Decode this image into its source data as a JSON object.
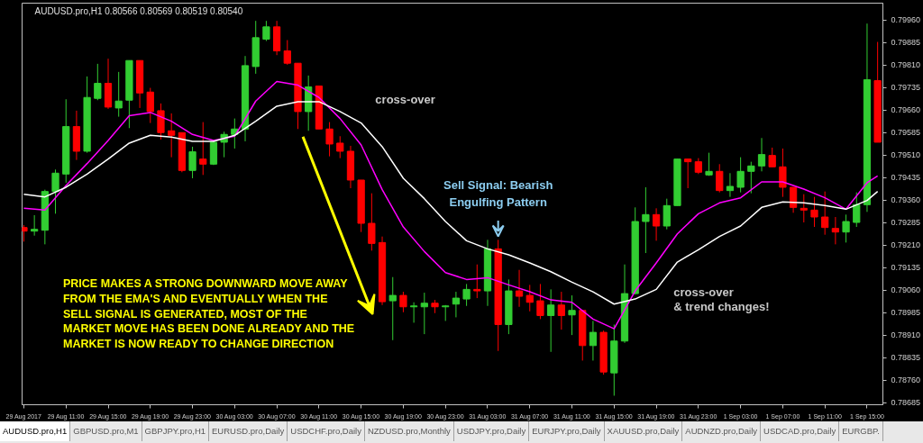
{
  "chart_data": {
    "type": "candlestick",
    "title": "AUDUSD.pro,H1  0.80566 0.80569 0.80519 0.80540",
    "x": [
      "2017-08-29T07:00",
      "2017-08-29T08:00",
      "2017-08-29T09:00",
      "2017-08-29T10:00",
      "2017-08-29T11:00",
      "2017-08-29T12:00",
      "2017-08-29T13:00",
      "2017-08-29T14:00",
      "2017-08-29T15:00",
      "2017-08-29T16:00",
      "2017-08-29T17:00",
      "2017-08-29T18:00",
      "2017-08-29T19:00",
      "2017-08-29T20:00",
      "2017-08-29T21:00",
      "2017-08-29T22:00",
      "2017-08-29T23:00",
      "2017-08-30T00:00",
      "2017-08-30T01:00",
      "2017-08-30T02:00",
      "2017-08-30T03:00",
      "2017-08-30T04:00",
      "2017-08-30T05:00",
      "2017-08-30T06:00",
      "2017-08-30T07:00",
      "2017-08-30T08:00",
      "2017-08-30T09:00",
      "2017-08-30T10:00",
      "2017-08-30T11:00",
      "2017-08-30T12:00",
      "2017-08-30T13:00",
      "2017-08-30T14:00",
      "2017-08-30T15:00",
      "2017-08-30T16:00",
      "2017-08-30T17:00",
      "2017-08-30T18:00",
      "2017-08-30T19:00",
      "2017-08-30T20:00",
      "2017-08-30T21:00",
      "2017-08-30T22:00",
      "2017-08-30T23:00",
      "2017-08-31T00:00",
      "2017-08-31T01:00",
      "2017-08-31T02:00",
      "2017-08-31T03:00",
      "2017-08-31T04:00",
      "2017-08-31T05:00",
      "2017-08-31T06:00",
      "2017-08-31T07:00",
      "2017-08-31T08:00",
      "2017-08-31T09:00",
      "2017-08-31T10:00",
      "2017-08-31T11:00",
      "2017-08-31T12:00",
      "2017-08-31T13:00",
      "2017-08-31T14:00",
      "2017-08-31T15:00",
      "2017-08-31T16:00",
      "2017-08-31T17:00",
      "2017-08-31T18:00",
      "2017-08-31T19:00",
      "2017-08-31T20:00",
      "2017-08-31T21:00",
      "2017-08-31T22:00",
      "2017-08-31T23:00",
      "2017-09-01T00:00",
      "2017-09-01T01:00",
      "2017-09-01T02:00",
      "2017-09-01T03:00",
      "2017-09-01T04:00",
      "2017-09-01T05:00",
      "2017-09-01T06:00",
      "2017-09-01T07:00",
      "2017-09-01T08:00",
      "2017-09-01T09:00",
      "2017-09-01T10:00",
      "2017-09-01T11:00",
      "2017-09-01T12:00",
      "2017-09-01T13:00",
      "2017-09-01T14:00",
      "2017-09-01T15:00",
      "2017-09-01T16:00"
    ],
    "ohlc": [
      [
        0.79269,
        0.79277,
        0.79222,
        0.79257
      ],
      [
        0.79257,
        0.7931,
        0.79242,
        0.79263
      ],
      [
        0.7926,
        0.79395,
        0.79213,
        0.79389
      ],
      [
        0.79389,
        0.79462,
        0.79315,
        0.7945
      ],
      [
        0.79447,
        0.79696,
        0.79418,
        0.79605
      ],
      [
        0.79605,
        0.79658,
        0.79494,
        0.79523
      ],
      [
        0.79523,
        0.79772,
        0.79518,
        0.79702
      ],
      [
        0.79699,
        0.79814,
        0.79693,
        0.79749
      ],
      [
        0.79749,
        0.79831,
        0.79664,
        0.7967
      ],
      [
        0.79667,
        0.79787,
        0.79638,
        0.7969
      ],
      [
        0.79693,
        0.79825,
        0.796,
        0.79825
      ],
      [
        0.79825,
        0.79825,
        0.79667,
        0.79717
      ],
      [
        0.7972,
        0.79734,
        0.79617,
        0.79655
      ],
      [
        0.79658,
        0.79682,
        0.79562,
        0.79585
      ],
      [
        0.79591,
        0.79649,
        0.79503,
        0.79576
      ],
      [
        0.79585,
        0.79585,
        0.79453,
        0.79459
      ],
      [
        0.79459,
        0.79538,
        0.79433,
        0.79521
      ],
      [
        0.79497,
        0.7962,
        0.79444,
        0.7948
      ],
      [
        0.7948,
        0.79559,
        0.79477,
        0.79553
      ],
      [
        0.79553,
        0.79588,
        0.79503,
        0.79579
      ],
      [
        0.79579,
        0.79632,
        0.79532,
        0.79597
      ],
      [
        0.79597,
        0.7984,
        0.79556,
        0.79808
      ],
      [
        0.79805,
        0.79957,
        0.79781,
        0.79901
      ],
      [
        0.79896,
        0.79957,
        0.7989,
        0.79937
      ],
      [
        0.79937,
        0.79957,
        0.79843,
        0.79857
      ],
      [
        0.79857,
        0.79893,
        0.79811,
        0.79816
      ],
      [
        0.79816,
        0.79816,
        0.79597,
        0.79655
      ],
      [
        0.79655,
        0.79775,
        0.79591,
        0.79737
      ],
      [
        0.7974,
        0.7974,
        0.79597,
        0.79597
      ],
      [
        0.79597,
        0.7962,
        0.79506,
        0.79547
      ],
      [
        0.7955,
        0.79573,
        0.795,
        0.79523
      ],
      [
        0.79523,
        0.79541,
        0.794,
        0.79427
      ],
      [
        0.79427,
        0.79427,
        0.79254,
        0.79283
      ],
      [
        0.79283,
        0.79383,
        0.79192,
        0.79216
      ],
      [
        0.79219,
        0.79239,
        0.79011,
        0.79022
      ],
      [
        0.79025,
        0.79104,
        0.78894,
        0.79043
      ],
      [
        0.79043,
        0.79055,
        0.78987,
        0.79005
      ],
      [
        0.79005,
        0.7902,
        0.78952,
        0.79008
      ],
      [
        0.79005,
        0.79052,
        0.78914,
        0.79017
      ],
      [
        0.79017,
        0.79028,
        0.78984,
        0.79005
      ],
      [
        0.79005,
        0.79011,
        0.78958,
        0.79008
      ],
      [
        0.79014,
        0.79055,
        0.7897,
        0.79034
      ],
      [
        0.79031,
        0.79081,
        0.79008,
        0.79063
      ],
      [
        0.79063,
        0.79146,
        0.79034,
        0.79058
      ],
      [
        0.79058,
        0.79228,
        0.79008,
        0.79198
      ],
      [
        0.79198,
        0.79228,
        0.78858,
        0.78946
      ],
      [
        0.78946,
        0.79096,
        0.78914,
        0.79058
      ],
      [
        0.79058,
        0.79128,
        0.79005,
        0.7904
      ],
      [
        0.79043,
        0.79078,
        0.7899,
        0.7902
      ],
      [
        0.79025,
        0.79081,
        0.78964,
        0.78976
      ],
      [
        0.78976,
        0.79063,
        0.78855,
        0.79011
      ],
      [
        0.79011,
        0.79055,
        0.78929,
        0.78976
      ],
      [
        0.78978,
        0.79043,
        0.78911,
        0.78993
      ],
      [
        0.78993,
        0.78993,
        0.78826,
        0.78876
      ],
      [
        0.78876,
        0.78958,
        0.78826,
        0.7892
      ],
      [
        0.7892,
        0.78926,
        0.78779,
        0.78788
      ],
      [
        0.78785,
        0.78946,
        0.78709,
        0.78891
      ],
      [
        0.78891,
        0.79146,
        0.78885,
        0.79049
      ],
      [
        0.79049,
        0.79336,
        0.79046,
        0.79289
      ],
      [
        0.79289,
        0.79403,
        0.79184,
        0.79312
      ],
      [
        0.79312,
        0.79333,
        0.79225,
        0.79274
      ],
      [
        0.79274,
        0.79365,
        0.79263,
        0.79342
      ],
      [
        0.79342,
        0.79497,
        0.79342,
        0.79497
      ],
      [
        0.79497,
        0.79497,
        0.794,
        0.79488
      ],
      [
        0.79488,
        0.795,
        0.79447,
        0.79453
      ],
      [
        0.79444,
        0.79518,
        0.79441,
        0.79456
      ],
      [
        0.79456,
        0.7948,
        0.79386,
        0.79392
      ],
      [
        0.79392,
        0.7945,
        0.79371,
        0.79406
      ],
      [
        0.79403,
        0.79503,
        0.79386,
        0.79456
      ],
      [
        0.79456,
        0.79488,
        0.79383,
        0.79474
      ],
      [
        0.79474,
        0.79567,
        0.79456,
        0.79512
      ],
      [
        0.79509,
        0.79535,
        0.79471,
        0.79471
      ],
      [
        0.79471,
        0.79532,
        0.79371,
        0.79403
      ],
      [
        0.79403,
        0.79403,
        0.79318,
        0.79336
      ],
      [
        0.79333,
        0.7938,
        0.79286,
        0.79327
      ],
      [
        0.79327,
        0.79371,
        0.79271,
        0.79304
      ],
      [
        0.79304,
        0.79389,
        0.79245,
        0.79269
      ],
      [
        0.79266,
        0.79304,
        0.79213,
        0.79254
      ],
      [
        0.79254,
        0.79312,
        0.79219,
        0.79289
      ],
      [
        0.79286,
        0.79386,
        0.79271,
        0.79345
      ],
      [
        0.79345,
        0.79948,
        0.79321,
        0.79761
      ],
      [
        0.79758,
        0.79887,
        0.79553,
        0.79553
      ]
    ],
    "colors": [
      "#ff0000",
      "#32cd32",
      "#32cd32",
      "#32cd32",
      "#32cd32",
      "#ff0000",
      "#32cd32",
      "#32cd32",
      "#ff0000",
      "#32cd32",
      "#32cd32",
      "#ff0000",
      "#ff0000",
      "#ff0000",
      "#ff0000",
      "#ff0000",
      "#32cd32",
      "#ff0000",
      "#32cd32",
      "#32cd32",
      "#32cd32",
      "#32cd32",
      "#32cd32",
      "#32cd32",
      "#ff0000",
      "#ff0000",
      "#ff0000",
      "#32cd32",
      "#ff0000",
      "#ff0000",
      "#ff0000",
      "#ff0000",
      "#ff0000",
      "#ff0000",
      "#ff0000",
      "#32cd32",
      "#ff0000",
      "#32cd32",
      "#32cd32",
      "#ff0000",
      "#32cd32",
      "#32cd32",
      "#32cd32",
      "#ff0000",
      "#32cd32",
      "#ff0000",
      "#32cd32",
      "#ff0000",
      "#ff0000",
      "#ff0000",
      "#32cd32",
      "#ff0000",
      "#32cd32",
      "#ff0000",
      "#32cd32",
      "#ff0000",
      "#32cd32",
      "#32cd32",
      "#32cd32",
      "#32cd32",
      "#ff0000",
      "#32cd32",
      "#32cd32",
      "#ff0000",
      "#ff0000",
      "#32cd32",
      "#ff0000",
      "#32cd32",
      "#32cd32",
      "#32cd32",
      "#32cd32",
      "#ff0000",
      "#ff0000",
      "#ff0000",
      "#ff0000",
      "#ff0000",
      "#ff0000",
      "#ff0000",
      "#32cd32",
      "#32cd32",
      "#32cd32",
      "#ff0000"
    ],
    "series": [
      {
        "type": "line",
        "color": "#ff00ff",
        "x": [
          "2017-08-29T07:00",
          "2017-08-29T09:00",
          "2017-08-29T11:00",
          "2017-08-29T13:00",
          "2017-08-29T15:00",
          "2017-08-29T17:00",
          "2017-08-29T19:00",
          "2017-08-29T21:00",
          "2017-08-29T23:00",
          "2017-08-30T01:00",
          "2017-08-30T03:00",
          "2017-08-30T05:00",
          "2017-08-30T07:00",
          "2017-08-30T09:00",
          "2017-08-30T11:00",
          "2017-08-30T13:00",
          "2017-08-30T15:00",
          "2017-08-30T17:00",
          "2017-08-30T19:00",
          "2017-08-30T21:00",
          "2017-08-30T23:00",
          "2017-08-31T01:00",
          "2017-08-31T03:00",
          "2017-08-31T05:00",
          "2017-08-31T07:00",
          "2017-08-31T09:00",
          "2017-08-31T11:00",
          "2017-08-31T13:00",
          "2017-08-31T15:00",
          "2017-08-31T17:00",
          "2017-08-31T19:00",
          "2017-08-31T21:00",
          "2017-08-31T23:00",
          "2017-09-01T01:00",
          "2017-09-01T03:00",
          "2017-09-01T05:00",
          "2017-09-01T07:00",
          "2017-09-01T09:00",
          "2017-09-01T11:00",
          "2017-09-01T13:00",
          "2017-09-01T15:00",
          "2017-09-01T16:00"
        ],
        "values": [
          0.79333,
          0.79327,
          0.79409,
          0.79482,
          0.79559,
          0.79641,
          0.79652,
          0.79623,
          0.79579,
          0.79559,
          0.79573,
          0.7969,
          0.79755,
          0.79743,
          0.79702,
          0.79632,
          0.79544,
          0.79395,
          0.79271,
          0.79189,
          0.79119,
          0.79096,
          0.79102,
          0.79078,
          0.79055,
          0.79028,
          0.7902,
          0.78964,
          0.78932,
          0.79058,
          0.79151,
          0.79248,
          0.79315,
          0.79351,
          0.79368,
          0.79421,
          0.79421,
          0.79397,
          0.79368,
          0.7933,
          0.79418,
          0.79441
        ]
      },
      {
        "type": "line",
        "color": "#ffffff",
        "x": [
          "2017-08-29T07:00",
          "2017-08-29T09:00",
          "2017-08-29T11:00",
          "2017-08-29T13:00",
          "2017-08-29T15:00",
          "2017-08-29T17:00",
          "2017-08-29T19:00",
          "2017-08-29T21:00",
          "2017-08-29T23:00",
          "2017-08-30T01:00",
          "2017-08-30T03:00",
          "2017-08-30T05:00",
          "2017-08-30T07:00",
          "2017-08-30T09:00",
          "2017-08-30T11:00",
          "2017-08-30T13:00",
          "2017-08-30T15:00",
          "2017-08-30T17:00",
          "2017-08-30T19:00",
          "2017-08-30T21:00",
          "2017-08-30T23:00",
          "2017-08-31T01:00",
          "2017-08-31T03:00",
          "2017-08-31T05:00",
          "2017-08-31T07:00",
          "2017-08-31T09:00",
          "2017-08-31T11:00",
          "2017-08-31T13:00",
          "2017-08-31T15:00",
          "2017-08-31T17:00",
          "2017-08-31T19:00",
          "2017-08-31T21:00",
          "2017-08-31T23:00",
          "2017-09-01T01:00",
          "2017-09-01T03:00",
          "2017-09-01T05:00",
          "2017-09-01T07:00",
          "2017-09-01T09:00",
          "2017-09-01T11:00",
          "2017-09-01T13:00",
          "2017-09-01T15:00",
          "2017-09-01T16:00"
        ],
        "values": [
          0.7938,
          0.79371,
          0.79403,
          0.79447,
          0.79497,
          0.7955,
          0.79576,
          0.7957,
          0.79556,
          0.79556,
          0.79576,
          0.79623,
          0.79673,
          0.79688,
          0.79688,
          0.79655,
          0.79617,
          0.79538,
          0.79433,
          0.79365,
          0.79289,
          0.79225,
          0.79198,
          0.79178,
          0.79151,
          0.79122,
          0.79087,
          0.79055,
          0.79014,
          0.79031,
          0.79063,
          0.79154,
          0.79195,
          0.79239,
          0.79274,
          0.79336,
          0.79354,
          0.79351,
          0.79342,
          0.7933,
          0.79359,
          0.79389
        ]
      }
    ],
    "xlim": [
      "2017-08-29T06:50",
      "2017-09-01T16:30"
    ],
    "xticks": [
      {
        "value": "2017-08-29T07:00",
        "label": "29 Aug 2017"
      },
      {
        "value": "2017-08-29T11:00",
        "label": "29 Aug 11:00"
      },
      {
        "value": "2017-08-29T15:00",
        "label": "29 Aug 15:00"
      },
      {
        "value": "2017-08-29T19:00",
        "label": "29 Aug 19:00"
      },
      {
        "value": "2017-08-29T23:00",
        "label": "29 Aug 23:00"
      },
      {
        "value": "2017-08-30T03:00",
        "label": "30 Aug 03:00"
      },
      {
        "value": "2017-08-30T07:00",
        "label": "30 Aug 07:00"
      },
      {
        "value": "2017-08-30T11:00",
        "label": "30 Aug 11:00"
      },
      {
        "value": "2017-08-30T15:00",
        "label": "30 Aug 15:00"
      },
      {
        "value": "2017-08-30T19:00",
        "label": "30 Aug 19:00"
      },
      {
        "value": "2017-08-30T23:00",
        "label": "30 Aug 23:00"
      },
      {
        "value": "2017-08-31T03:00",
        "label": "31 Aug 03:00"
      },
      {
        "value": "2017-08-31T07:00",
        "label": "31 Aug 07:00"
      },
      {
        "value": "2017-08-31T11:00",
        "label": "31 Aug 11:00"
      },
      {
        "value": "2017-08-31T15:00",
        "label": "31 Aug 15:00"
      },
      {
        "value": "2017-08-31T19:00",
        "label": "31 Aug 19:00"
      },
      {
        "value": "2017-08-31T23:00",
        "label": "31 Aug 23:00"
      },
      {
        "value": "2017-09-01T03:00",
        "label": "1 Sep 03:00"
      },
      {
        "value": "2017-09-01T07:00",
        "label": "1 Sep 07:00"
      },
      {
        "value": "2017-09-01T11:00",
        "label": "1 Sep 11:00"
      },
      {
        "value": "2017-09-01T15:00",
        "label": "1 Sep 15:00"
      }
    ],
    "ylim": [
      0.78679,
      0.80016
    ],
    "yticks": [
      {
        "value": 0.7996,
        "label": "0.79960"
      },
      {
        "value": 0.79885,
        "label": "0.79885"
      },
      {
        "value": 0.7981,
        "label": "0.79810"
      },
      {
        "value": 0.79735,
        "label": "0.79735"
      },
      {
        "value": 0.7966,
        "label": "0.79660"
      },
      {
        "value": 0.79585,
        "label": "0.79585"
      },
      {
        "value": 0.7951,
        "label": "0.79510"
      },
      {
        "value": 0.79435,
        "label": "0.79435"
      },
      {
        "value": 0.7936,
        "label": "0.79360"
      },
      {
        "value": 0.79285,
        "label": "0.79285"
      },
      {
        "value": 0.7921,
        "label": "0.79210"
      },
      {
        "value": 0.79135,
        "label": "0.79135"
      },
      {
        "value": 0.7906,
        "label": "0.79060"
      },
      {
        "value": 0.78985,
        "label": "0.78985"
      },
      {
        "value": 0.7891,
        "label": "0.78910"
      },
      {
        "value": 0.78835,
        "label": "0.78835"
      },
      {
        "value": 0.7876,
        "label": "0.78760"
      },
      {
        "value": 0.78685,
        "label": "0.78685"
      }
    ],
    "annotations": [
      {
        "text": "Sell Signal: Bearish\nEngulfing Pattern",
        "x": "2017-08-31T04:00",
        "y": 0.79228
      },
      "cross-over",
      "cross-over\n& trend changes!",
      "PRICE MAKES A STRONG DOWNWARD MOVE AWAY\nFROM THE  EMA'S AND EVENTUALLY WHEN THE\nSELL SIGNAL IS GENERATED, MOST OF THE\nMARKET MOVE HAS BEEN DONE ALREADY AND THE\nMARKET IS NOW READY TO CHANGE DIRECTION",
      "AUDUSD.pro,H1",
      "GBPUSD.pro,M1",
      "GBPJPY.pro,H1",
      "EURUSD.pro,Daily",
      "USDCHF.pro,Daily",
      "NZDUSD.pro,Monthly",
      "USDJPY.pro,Daily",
      "EURJPY.pro,Daily",
      "XAUUSD.pro,Daily",
      "AUDNZD.pro,Daily",
      "USDCAD.pro,Daily",
      "EURGBP."
    ]
  }
}
